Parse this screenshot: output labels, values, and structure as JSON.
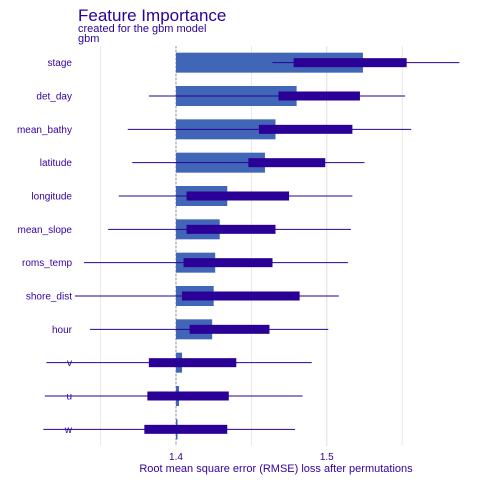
{
  "chart_data": {
    "type": "bar",
    "title": "Feature Importance",
    "subtitle": "created for the gbm model",
    "model_label": "gbm",
    "xlabel": "Root mean square error (RMSE) loss after permutations",
    "xlim": [
      1.335,
      1.595
    ],
    "xticks": [
      1.4,
      1.5
    ],
    "xtick_labels": [
      "1.4",
      "1.5"
    ],
    "baseline": 1.4,
    "grid": true,
    "colors": {
      "bar": "#4166b8",
      "box": "#2a0096",
      "whisker": "#2a0096",
      "text": "#3300a0",
      "grid": "#dcdcdc",
      "baseline": "#8a8ab8"
    },
    "categories": [
      "stage",
      "det_day",
      "mean_bathy",
      "latitude",
      "longitude",
      "mean_slope",
      "roms_temp",
      "shore_dist",
      "hour",
      "v",
      "u",
      "w"
    ],
    "bar_values": [
      1.524,
      1.48,
      1.466,
      1.459,
      1.434,
      1.429,
      1.426,
      1.425,
      1.424,
      1.404,
      1.402,
      1.401
    ],
    "box_q1": [
      1.478,
      1.468,
      1.455,
      1.448,
      1.407,
      1.407,
      1.405,
      1.404,
      1.409,
      1.382,
      1.381,
      1.379
    ],
    "box_q3": [
      1.553,
      1.522,
      1.517,
      1.499,
      1.475,
      1.466,
      1.464,
      1.482,
      1.462,
      1.44,
      1.435,
      1.434
    ],
    "whisker_min": [
      1.464,
      1.382,
      1.368,
      1.371,
      1.362,
      1.355,
      1.339,
      1.333,
      1.343,
      1.314,
      1.313,
      1.312
    ],
    "whisker_max": [
      1.588,
      1.552,
      1.556,
      1.525,
      1.517,
      1.516,
      1.514,
      1.508,
      1.501,
      1.49,
      1.484,
      1.479
    ]
  }
}
